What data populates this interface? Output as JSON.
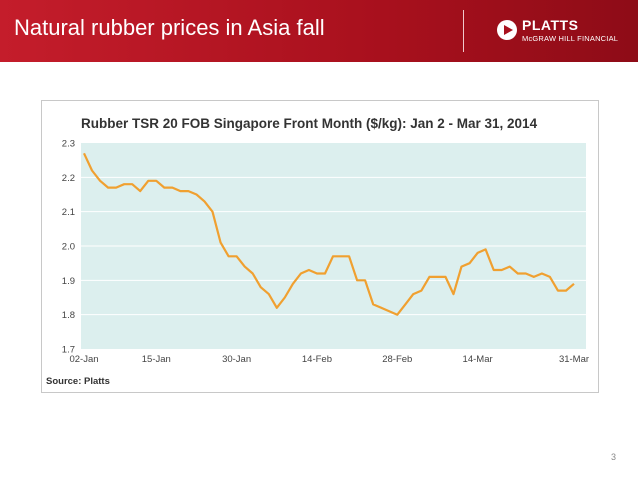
{
  "slide": {
    "title": "Natural rubber prices in Asia fall",
    "page_number": "3"
  },
  "logo": {
    "name": "PLATTS",
    "subtitle": "McGRAW HILL FINANCIAL"
  },
  "colors": {
    "banner": "#b01623",
    "plot_bg": "#dcefee",
    "line": "#f0a030"
  },
  "chart_data": {
    "type": "line",
    "title": "Rubber TSR 20 FOB Singapore Front Month ($/kg): Jan 2 - Mar 31, 2014",
    "source": "Source: Platts",
    "xlabel": "",
    "ylabel": "",
    "ylim": [
      1.7,
      2.3
    ],
    "yticks": [
      "2.3",
      "2.2",
      "2.1",
      "2.0",
      "1.9",
      "1.8",
      "1.7"
    ],
    "xticks": [
      "02-Jan",
      "15-Jan",
      "30-Jan",
      "14-Feb",
      "28-Feb",
      "14-Mar",
      "31-Mar"
    ],
    "grid": true,
    "series": [
      {
        "values": [
          2.27,
          2.22,
          2.19,
          2.17,
          2.17,
          2.18,
          2.18,
          2.16,
          2.19,
          2.19,
          2.17,
          2.17,
          2.16,
          2.16,
          2.15,
          2.13,
          2.1,
          2.01,
          1.97,
          1.97,
          1.94,
          1.92,
          1.88,
          1.86,
          1.82,
          1.85,
          1.89,
          1.92,
          1.93,
          1.92,
          1.92,
          1.97,
          1.97,
          1.97,
          1.9,
          1.9,
          1.83,
          1.82,
          1.81,
          1.8,
          1.83,
          1.86,
          1.87,
          1.91,
          1.91,
          1.91,
          1.86,
          1.94,
          1.95,
          1.98,
          1.99,
          1.93,
          1.93,
          1.94,
          1.92,
          1.92,
          1.91,
          1.92,
          1.91,
          1.87,
          1.87,
          1.89
        ]
      }
    ]
  }
}
